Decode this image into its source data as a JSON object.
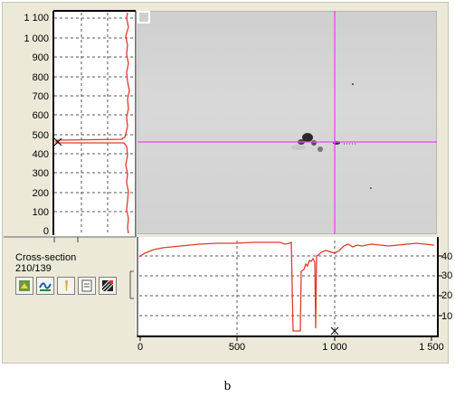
{
  "profile": {
    "title": "Cross-section",
    "value": "210/139"
  },
  "vertical_axis": {
    "ticks": [
      "1 100",
      "1 000",
      "900",
      "800",
      "700",
      "600",
      "500",
      "400",
      "300",
      "200",
      "100",
      "0"
    ]
  },
  "horizontal_axis": {
    "ticks": [
      "0",
      "500",
      "1 000",
      "1 500"
    ]
  },
  "right_axis": {
    "ticks": [
      "40",
      "30",
      "20",
      "10"
    ]
  },
  "caption": "b",
  "toolbar": {
    "buttons": [
      "measure-icon",
      "profile-icon",
      "marker-icon",
      "list-icon",
      "pattern-icon"
    ]
  },
  "colors": {
    "profile_line": "#e23a2a",
    "crosshair": "#e04ee0",
    "panel": "#ece9d8"
  }
}
